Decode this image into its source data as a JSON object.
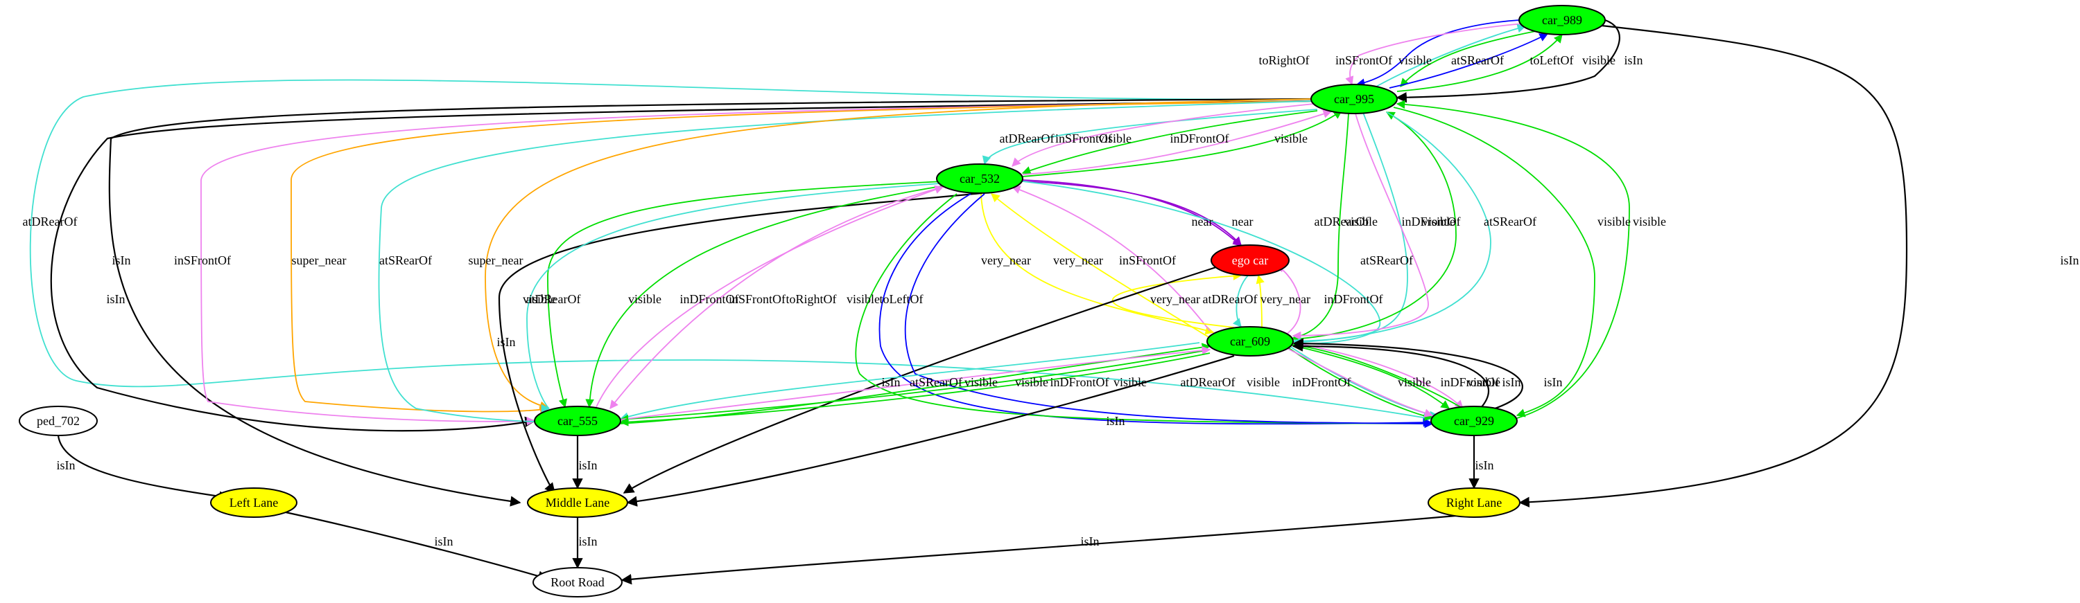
{
  "colors": {
    "car": "#00ff00",
    "ego": "#ff0000",
    "lane": "#ffff00",
    "plain": "#ffffff",
    "isIn": "#000000",
    "visible": "#00dd00",
    "atDRearOf": "#40e0d0",
    "atSRearOf": "#40e0d0",
    "inDFrontOf": "#ee82ee",
    "inSFrontOf": "#ee82ee",
    "toRightOf": "#0000ff",
    "toLeftOf": "#0000ff",
    "near": "#9400d3",
    "very_near": "#ffff00",
    "super_near": "#ffa500"
  },
  "nodes": {
    "car_989": {
      "label": "car_989",
      "kind": "car"
    },
    "car_995": {
      "label": "car_995",
      "kind": "car"
    },
    "car_532": {
      "label": "car_532",
      "kind": "car"
    },
    "ego_car": {
      "label": "ego car",
      "kind": "ego"
    },
    "car_609": {
      "label": "car_609",
      "kind": "car"
    },
    "car_555": {
      "label": "car_555",
      "kind": "car"
    },
    "car_929": {
      "label": "car_929",
      "kind": "car"
    },
    "ped_702": {
      "label": "ped_702",
      "kind": "plain"
    },
    "left_lane": {
      "label": "Left Lane",
      "kind": "lane"
    },
    "middle_lane": {
      "label": "Middle Lane",
      "kind": "lane"
    },
    "right_lane": {
      "label": "Right Lane",
      "kind": "lane"
    },
    "root_road": {
      "label": "Root Road",
      "kind": "plain"
    }
  },
  "edges": [
    {
      "id": "e1",
      "label": "toRightOf",
      "rel": "toRightOf"
    },
    {
      "id": "e2",
      "label": "inSFrontOf",
      "rel": "inSFrontOf"
    },
    {
      "id": "e3",
      "label": "visible",
      "rel": "visible"
    },
    {
      "id": "e4",
      "label": "atSRearOf",
      "rel": "atSRearOf"
    },
    {
      "id": "e5",
      "label": "toLeftOf",
      "rel": "toLeftOf"
    },
    {
      "id": "e6",
      "label": "visible",
      "rel": "visible"
    },
    {
      "id": "e7",
      "label": "isIn",
      "rel": "isIn"
    },
    {
      "id": "e8",
      "label": "atDRearOf",
      "rel": "atDRearOf"
    },
    {
      "id": "e9",
      "label": "isIn",
      "rel": "isIn"
    },
    {
      "id": "e10",
      "label": "isIn",
      "rel": "isIn"
    },
    {
      "id": "e11",
      "label": "inSFrontOf",
      "rel": "inSFrontOf"
    },
    {
      "id": "e12",
      "label": "super_near",
      "rel": "super_near"
    },
    {
      "id": "e13",
      "label": "atSRearOf",
      "rel": "atSRearOf"
    },
    {
      "id": "e14",
      "label": "super_near",
      "rel": "super_near"
    },
    {
      "id": "e15",
      "label": "atDRearOf",
      "rel": "atDRearOf"
    },
    {
      "id": "e16",
      "label": "visible",
      "rel": "visible"
    },
    {
      "id": "e17",
      "label": "inDFrontOf",
      "rel": "inDFrontOf"
    },
    {
      "id": "e18",
      "label": "visible",
      "rel": "visible"
    },
    {
      "id": "e19",
      "label": "near",
      "rel": "near"
    },
    {
      "id": "e20",
      "label": "near",
      "rel": "near"
    },
    {
      "id": "e21",
      "label": "very_near",
      "rel": "very_near"
    },
    {
      "id": "e22",
      "label": "very_near",
      "rel": "very_near"
    },
    {
      "id": "e23",
      "label": "inSFrontOf",
      "rel": "inSFrontOf"
    },
    {
      "id": "e24",
      "label": "atSRearOf",
      "rel": "atSRearOf"
    },
    {
      "id": "e25",
      "label": "very_near",
      "rel": "very_near"
    },
    {
      "id": "e26",
      "label": "atDRearOf",
      "rel": "atDRearOf"
    },
    {
      "id": "e27",
      "label": "very_near",
      "rel": "very_near"
    },
    {
      "id": "e28",
      "label": "inDFrontOf",
      "rel": "inDFrontOf"
    },
    {
      "id": "e29",
      "label": "isIn",
      "rel": "isIn"
    },
    {
      "id": "e30",
      "label": "atDRearOf",
      "rel": "atDRearOf"
    },
    {
      "id": "e31",
      "label": "visible",
      "rel": "visible"
    },
    {
      "id": "e32",
      "label": "visible",
      "rel": "visible"
    },
    {
      "id": "e33",
      "label": "inDFrontOf",
      "rel": "inDFrontOf"
    },
    {
      "id": "e34",
      "label": "atSRearOf",
      "rel": "atSRearOf"
    },
    {
      "id": "e35",
      "label": "visible",
      "rel": "visible"
    },
    {
      "id": "e36",
      "label": "visible",
      "rel": "visible"
    },
    {
      "id": "e37",
      "label": "inSFrontOf",
      "rel": "inSFrontOf"
    },
    {
      "id": "e38",
      "label": "isIn",
      "rel": "isIn"
    },
    {
      "id": "e39",
      "label": "visible",
      "rel": "visible"
    },
    {
      "id": "e40",
      "label": "atDRearOf",
      "rel": "atDRearOf"
    },
    {
      "id": "e41",
      "label": "visible",
      "rel": "visible"
    },
    {
      "id": "e42",
      "label": "inDFrontOf",
      "rel": "inDFrontOf"
    },
    {
      "id": "e43",
      "label": "inSFrontOf",
      "rel": "inSFrontOf"
    },
    {
      "id": "e44",
      "label": "toRightOf",
      "rel": "toRightOf"
    },
    {
      "id": "e45",
      "label": "visible",
      "rel": "visible"
    },
    {
      "id": "e46",
      "label": "toLeftOf",
      "rel": "toLeftOf"
    },
    {
      "id": "e47",
      "label": "atSRearOf",
      "rel": "atSRearOf"
    },
    {
      "id": "e48",
      "label": "visible",
      "rel": "visible"
    },
    {
      "id": "e49",
      "label": "visible",
      "rel": "visible"
    },
    {
      "id": "e50",
      "label": "inDFrontOf",
      "rel": "inDFrontOf"
    },
    {
      "id": "e51",
      "label": "visible",
      "rel": "visible"
    },
    {
      "id": "e52",
      "label": "atDRearOf",
      "rel": "atDRearOf"
    },
    {
      "id": "e53",
      "label": "visible",
      "rel": "visible"
    },
    {
      "id": "e54",
      "label": "inDFrontOf",
      "rel": "inDFrontOf"
    },
    {
      "id": "e55",
      "label": "visible",
      "rel": "visible"
    },
    {
      "id": "e56",
      "label": "inDFrontOf",
      "rel": "inDFrontOf"
    },
    {
      "id": "e57",
      "label": "visible",
      "rel": "visible"
    },
    {
      "id": "e58",
      "label": "isIn",
      "rel": "isIn"
    },
    {
      "id": "e59",
      "label": "isIn",
      "rel": "isIn"
    },
    {
      "id": "e60",
      "label": "isIn",
      "rel": "isIn"
    },
    {
      "id": "e61",
      "label": "isIn",
      "rel": "isIn"
    },
    {
      "id": "e62",
      "label": "isIn",
      "rel": "isIn"
    },
    {
      "id": "e63",
      "label": "isIn",
      "rel": "isIn"
    },
    {
      "id": "e64",
      "label": "isIn",
      "rel": "isIn"
    }
  ]
}
